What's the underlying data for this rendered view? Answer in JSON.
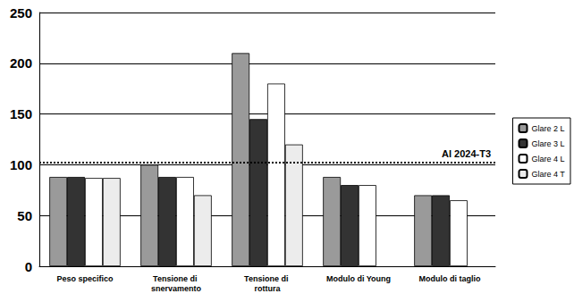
{
  "chart_data": {
    "type": "bar",
    "categories": [
      "Peso specifico",
      "Tensione di snervamento",
      "Tensione di rottura",
      "Modulo di Young",
      "Modulo di taglio"
    ],
    "series": [
      {
        "name": "Glare 2 L",
        "color": "#9a9a9a",
        "values": [
          88,
          100,
          210,
          88,
          70
        ]
      },
      {
        "name": "Glare 3 L",
        "color": "#333333",
        "values": [
          88,
          88,
          145,
          80,
          70
        ]
      },
      {
        "name": "Glare 4 L",
        "color": "#ffffff",
        "values": [
          87,
          88,
          180,
          80,
          65
        ]
      },
      {
        "name": "Glare 4 T",
        "color": "#ececec",
        "values": [
          87,
          70,
          120,
          null,
          null
        ]
      }
    ],
    "annotations": [
      {
        "text": "Al 2024-T3",
        "y": 102,
        "line_style": "dotted"
      }
    ],
    "ylim": [
      0,
      250
    ],
    "yticks": [
      0,
      50,
      100,
      150,
      200,
      250
    ],
    "grid": true,
    "legend": "right"
  }
}
